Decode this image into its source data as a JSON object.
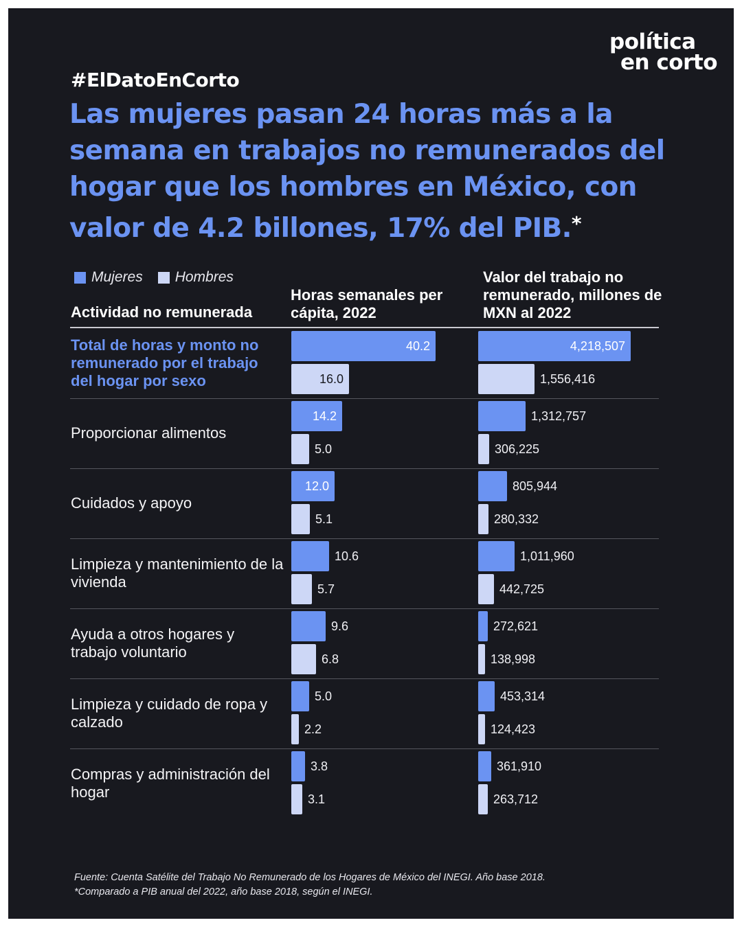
{
  "brand": {
    "logo_line1": "política",
    "logo_line2": "en corto"
  },
  "hashtag": "#ElDatoEnCorto",
  "headline": "Las mujeres pasan 24 horas más a la semana en trabajos no remunerados del hogar que los hombres en México, con valor de 4.2 billones, 17% del PIB.",
  "headline_mark": "*",
  "colors": {
    "mujeres": "#6b93f2",
    "hombres": "#cdd7f6",
    "background": "#18191f"
  },
  "chart_data": {
    "type": "bar",
    "orientation": "horizontal",
    "legend": [
      "Mujeres",
      "Hombres"
    ],
    "legend_position": "top-left",
    "row_header": "Actividad no remunerada",
    "categories": [
      "Total de horas y monto no remunerado por el trabajo del hogar por sexo",
      "Proporcionar alimentos",
      "Cuidados y apoyo",
      "Limpieza y mantenimiento de la vivienda",
      "Ayuda a otros hogares y trabajo voluntario",
      "Limpieza y cuidado de ropa y calzado",
      "Compras y administración del hogar"
    ],
    "panels": [
      {
        "title": "Horas semanales per cápita, 2022",
        "max": 40.2,
        "series": [
          {
            "name": "Mujeres",
            "values": [
              40.2,
              14.2,
              12.0,
              10.6,
              9.6,
              5.0,
              3.8
            ],
            "labels": [
              "40.2",
              "14.2",
              "12.0",
              "10.6",
              "9.6",
              "5.0",
              "3.8"
            ]
          },
          {
            "name": "Hombres",
            "values": [
              16.0,
              5.0,
              5.1,
              5.7,
              6.8,
              2.2,
              3.1
            ],
            "labels": [
              "16.0",
              "5.0",
              "5.1",
              "5.7",
              "6.8",
              "2.2",
              "3.1"
            ]
          }
        ]
      },
      {
        "title": "Valor del trabajo no remunerado, millones de MXN al 2022",
        "max": 4218507,
        "series": [
          {
            "name": "Mujeres",
            "values": [
              4218507,
              1312757,
              805944,
              1011960,
              272621,
              453314,
              361910
            ],
            "labels": [
              "4,218,507",
              "1,312,757",
              "805,944",
              "1,011,960",
              "272,621",
              "453,314",
              "361,910"
            ]
          },
          {
            "name": "Hombres",
            "values": [
              1556416,
              306225,
              280332,
              442725,
              138998,
              124423,
              263712
            ],
            "labels": [
              "1,556,416",
              "306,225",
              "280,332",
              "442,725",
              "138,998",
              "124,423",
              "263,712"
            ]
          }
        ]
      }
    ]
  },
  "footer": {
    "line1": "Fuente: Cuenta Satélite del Trabajo No Remunerado de los Hogares de México del INEGI. Año base 2018.",
    "line2": "*Comparado a PIB anual del 2022, año base 2018, según el INEGI."
  }
}
